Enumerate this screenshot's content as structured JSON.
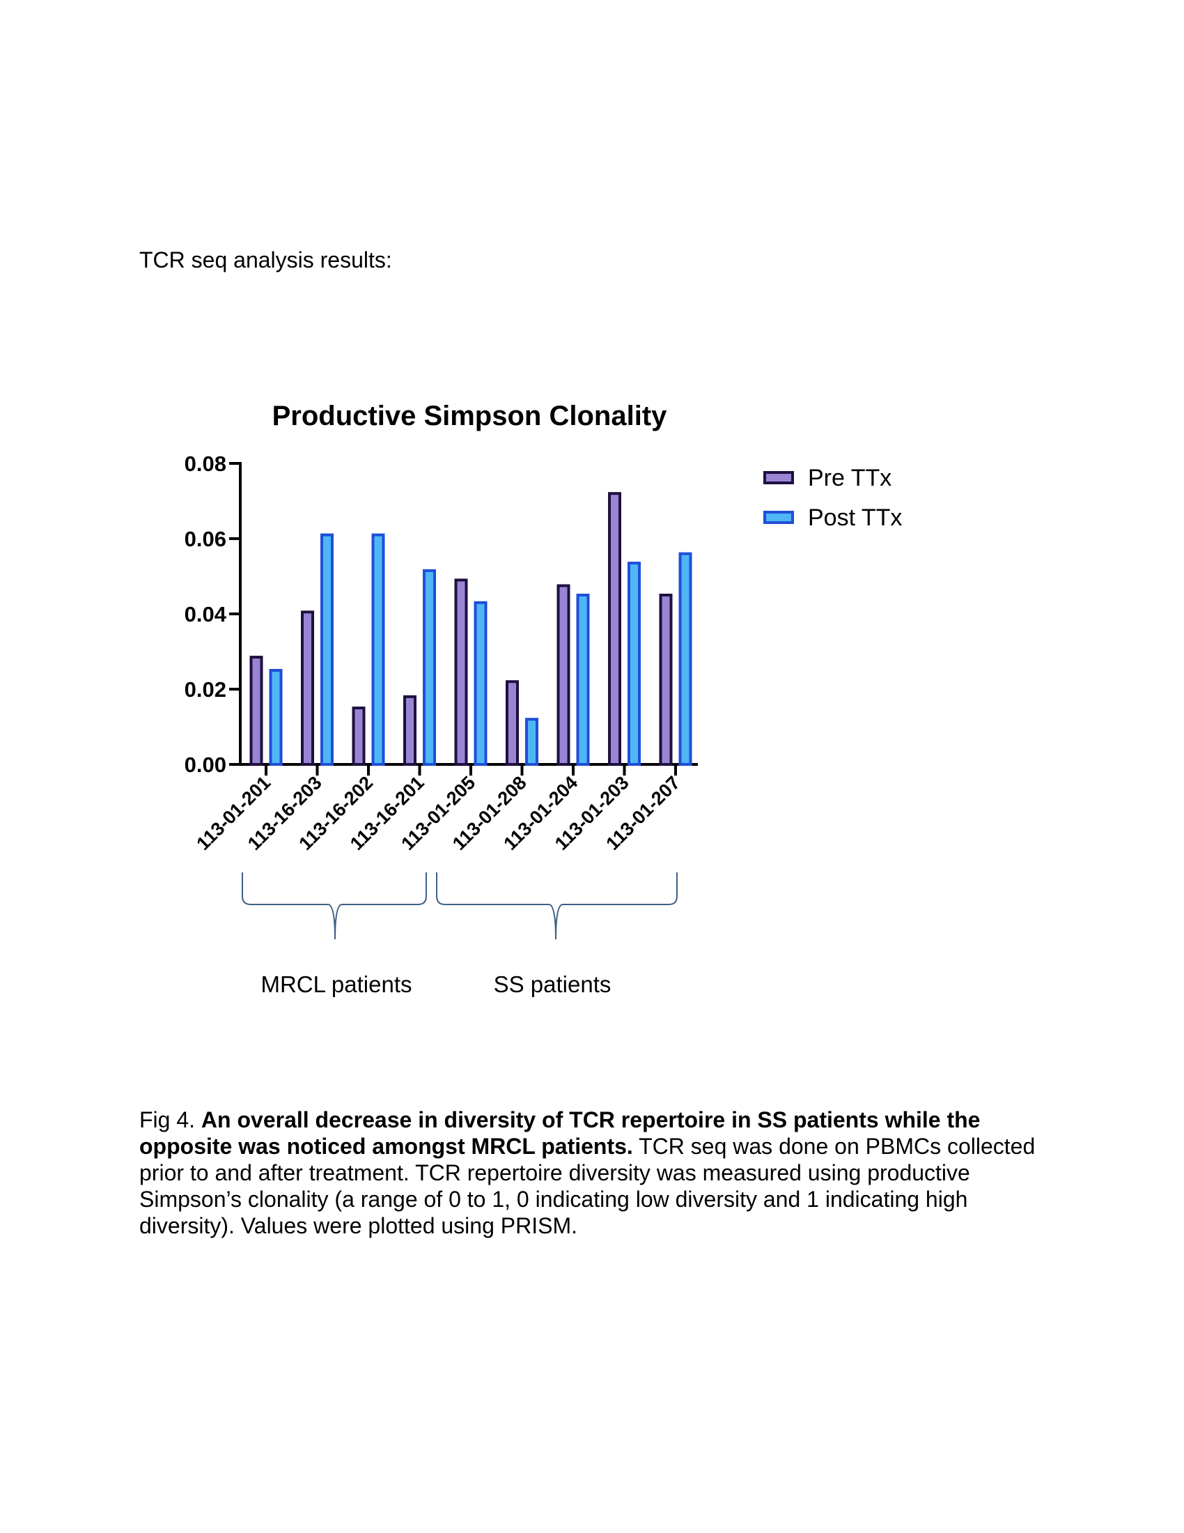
{
  "intro_text": "TCR seq analysis results:",
  "chart_data": {
    "type": "bar",
    "title": "Productive Simpson Clonality",
    "xlabel": "",
    "ylabel": "",
    "ylim": [
      0,
      0.08
    ],
    "yticks": [
      "0.00",
      "0.02",
      "0.04",
      "0.06",
      "0.08"
    ],
    "grid": false,
    "legend_position": "top-right",
    "categories": [
      "113-01-201",
      "113-16-203",
      "113-16-202",
      "113-16-201",
      "113-01-205",
      "113-01-208",
      "113-01-204",
      "113-01-203",
      "113-01-207"
    ],
    "series": [
      {
        "name": "Pre TTx",
        "values": [
          0.0285,
          0.0405,
          0.015,
          0.018,
          0.049,
          0.022,
          0.0475,
          0.072,
          0.045
        ]
      },
      {
        "name": "Post TTx",
        "values": [
          0.025,
          0.061,
          0.061,
          0.0515,
          0.043,
          0.012,
          0.045,
          0.0535,
          0.056
        ]
      }
    ],
    "groups": [
      {
        "label": "MRCL patients",
        "categories": [
          "113-01-201",
          "113-16-203",
          "113-16-202",
          "113-16-201"
        ]
      },
      {
        "label": "SS patients",
        "categories": [
          "113-01-205",
          "113-01-208",
          "113-01-204",
          "113-01-203",
          "113-01-207"
        ]
      }
    ]
  },
  "colors": {
    "pre_fill": "#9a85d4",
    "pre_stroke": "#1e1040",
    "post_fill": "#4fb6f5",
    "post_stroke": "#1f4fd8",
    "brace": "#3e5f84"
  },
  "caption": {
    "prefix": "Fig 4. ",
    "bold": "An overall decrease in diversity of TCR repertoire in SS patients while the opposite was noticed amongst MRCL patients.",
    "rest": " TCR seq was done on PBMCs collected prior to and after treatment. TCR repertoire diversity was measured using productive Simpson’s clonality (a range of 0 to 1, 0 indicating low diversity and 1 indicating high diversity). Values were plotted using PRISM."
  }
}
